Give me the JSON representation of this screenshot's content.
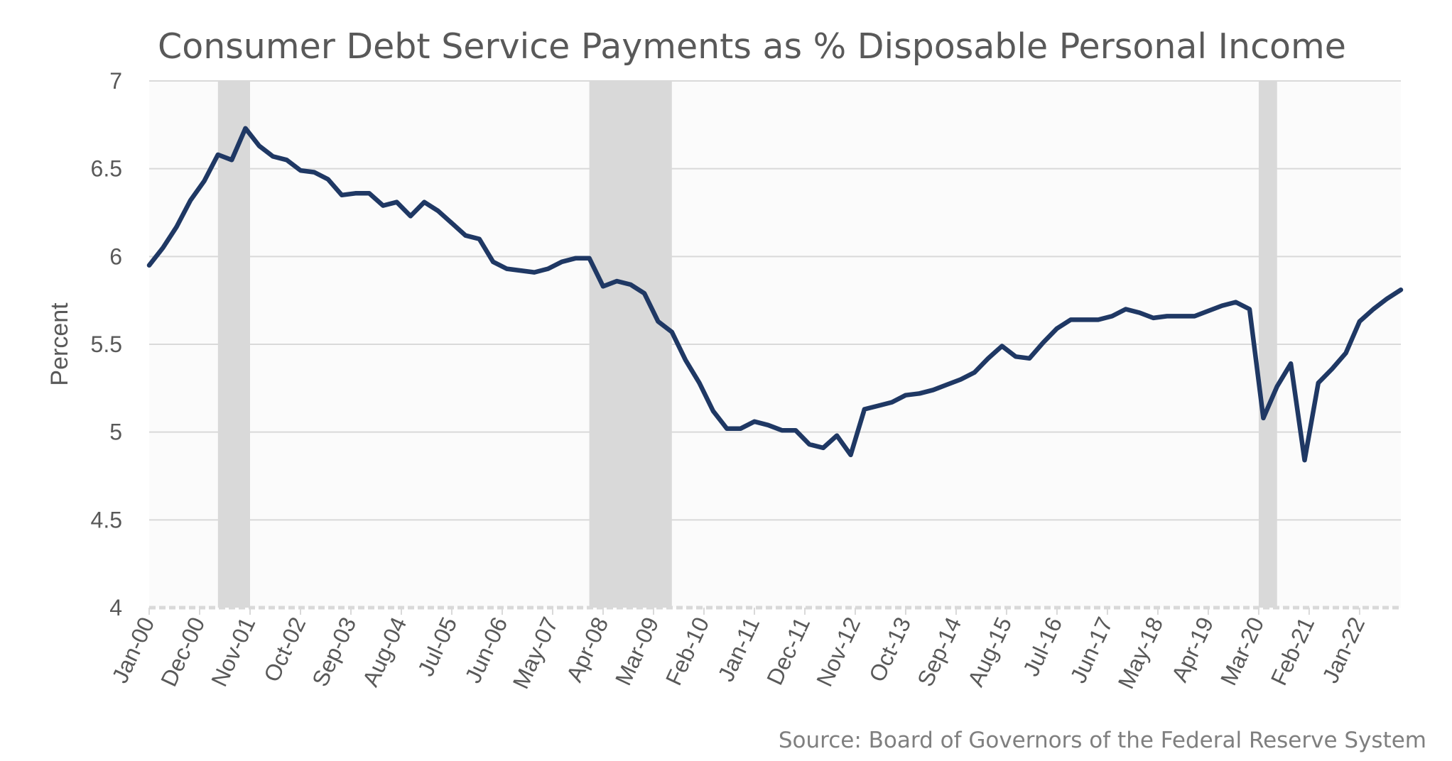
{
  "chart_data": {
    "type": "line",
    "title": "Consumer Debt Service Payments as % Disposable Personal Income",
    "ylabel": "Percent",
    "xlabel": "",
    "source": "Source: Board of Governors of the Federal Reserve System",
    "ylim": [
      4,
      7
    ],
    "yticks": [
      "4",
      "4.5",
      "5",
      "5.5",
      "6",
      "6.5",
      "7"
    ],
    "xlim": [
      "2000-01",
      "2022-10"
    ],
    "grid": true,
    "legend": "none",
    "series_color": "#1f3864",
    "recession_color": "#d9d9d9",
    "xtick_labels": [
      "Jan-00",
      "Dec-00",
      "Nov-01",
      "Oct-02",
      "Sep-03",
      "Aug-04",
      "Jul-05",
      "Jun-06",
      "May-07",
      "Apr-08",
      "Mar-09",
      "Feb-10",
      "Jan-11",
      "Dec-11",
      "Nov-12",
      "Oct-13",
      "Sep-14",
      "Aug-15",
      "Jul-16",
      "Jun-17",
      "May-18",
      "Apr-19",
      "Mar-20",
      "Feb-21",
      "Jan-22"
    ],
    "recessions": [
      [
        "2001-04",
        "2001-11"
      ],
      [
        "2008-01",
        "2009-07"
      ],
      [
        "2020-03",
        "2020-07"
      ]
    ],
    "series": [
      {
        "x": [
          "2000-01",
          "2000-04",
          "2000-07",
          "2000-10",
          "2001-01",
          "2001-04",
          "2001-07",
          "2001-10",
          "2002-01",
          "2002-04",
          "2002-07",
          "2002-10",
          "2003-01",
          "2003-04",
          "2003-07",
          "2003-10",
          "2004-01",
          "2004-04",
          "2004-07",
          "2004-10",
          "2005-01",
          "2005-04",
          "2005-07",
          "2005-10",
          "2006-01",
          "2006-04",
          "2006-07",
          "2006-10",
          "2007-01",
          "2007-04",
          "2007-07",
          "2007-10",
          "2008-01",
          "2008-04",
          "2008-07",
          "2008-10",
          "2009-01",
          "2009-04",
          "2009-07",
          "2009-10",
          "2010-01",
          "2010-04",
          "2010-07",
          "2010-10",
          "2011-01",
          "2011-04",
          "2011-07",
          "2011-10",
          "2012-01",
          "2012-04",
          "2012-07",
          "2012-10",
          "2013-01",
          "2013-04",
          "2013-07",
          "2013-10",
          "2014-01",
          "2014-04",
          "2014-07",
          "2014-10",
          "2015-01",
          "2015-04",
          "2015-07",
          "2015-10",
          "2016-01",
          "2016-04",
          "2016-07",
          "2016-10",
          "2017-01",
          "2017-04",
          "2017-07",
          "2017-10",
          "2018-01",
          "2018-04",
          "2018-07",
          "2018-10",
          "2019-01",
          "2019-04",
          "2019-07",
          "2019-10",
          "2020-01",
          "2020-04",
          "2020-07",
          "2020-10",
          "2021-01",
          "2021-04",
          "2021-07",
          "2021-10",
          "2022-01",
          "2022-04",
          "2022-07",
          "2022-10"
        ],
        "values": [
          5.95,
          6.05,
          6.17,
          6.32,
          6.43,
          6.58,
          6.55,
          6.73,
          6.63,
          6.57,
          6.55,
          6.49,
          6.48,
          6.44,
          6.35,
          6.36,
          6.36,
          6.29,
          6.31,
          6.23,
          6.31,
          6.26,
          6.19,
          6.12,
          6.1,
          5.97,
          5.93,
          5.92,
          5.91,
          5.93,
          5.97,
          5.99,
          5.99,
          5.83,
          5.86,
          5.84,
          5.79,
          5.63,
          5.57,
          5.41,
          5.28,
          5.12,
          5.02,
          5.02,
          5.06,
          5.04,
          5.01,
          5.01,
          4.93,
          4.91,
          4.98,
          4.87,
          5.13,
          5.15,
          5.17,
          5.21,
          5.22,
          5.24,
          5.27,
          5.3,
          5.34,
          5.42,
          5.49,
          5.43,
          5.42,
          5.51,
          5.59,
          5.64,
          5.64,
          5.64,
          5.66,
          5.7,
          5.68,
          5.65,
          5.66,
          5.66,
          5.66,
          5.69,
          5.72,
          5.74,
          5.7,
          5.08,
          5.26,
          5.39,
          4.84,
          5.28,
          5.36,
          5.45,
          5.63,
          5.7,
          5.76,
          5.81
        ]
      }
    ]
  }
}
